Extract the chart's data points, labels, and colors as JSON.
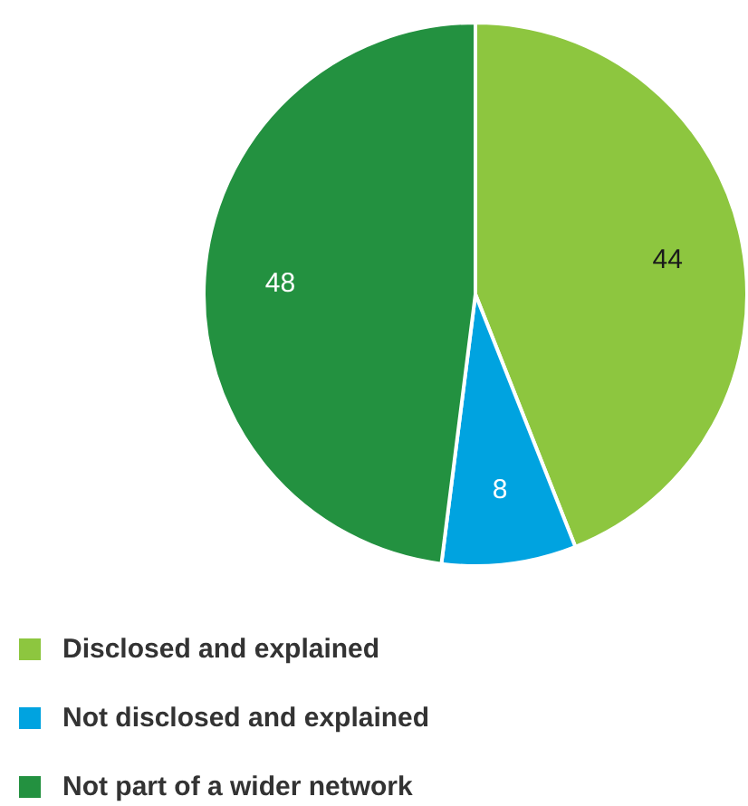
{
  "chart_data": {
    "type": "pie",
    "categories": [
      "Disclosed and explained",
      "Not disclosed and explained",
      "Not part of a wider network"
    ],
    "values": [
      44,
      8,
      48
    ],
    "colors": [
      "#8dc63f",
      "#00a3e0",
      "#239140"
    ],
    "data_labels": true,
    "legend": "bottom left"
  }
}
